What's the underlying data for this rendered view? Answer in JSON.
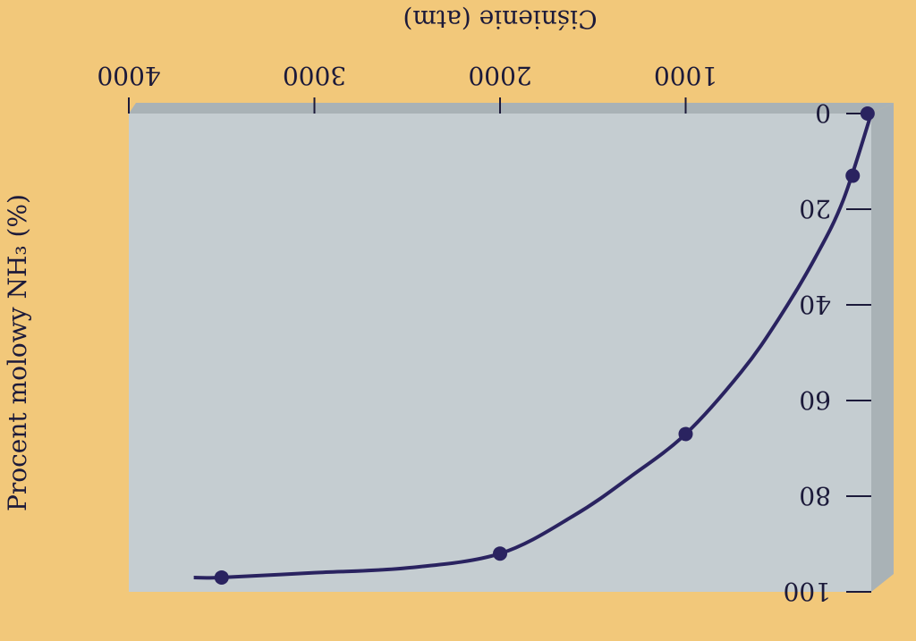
{
  "chart_data": {
    "type": "line",
    "title": "",
    "xlabel": "Ciśnienie (atm)",
    "ylabel": "Procent molowy NH₃ (%)",
    "xlim": [
      0,
      4000
    ],
    "ylim": [
      0,
      100
    ],
    "x_ticks": [
      1000,
      2000,
      3000,
      4000
    ],
    "y_ticks": [
      0,
      20,
      40,
      60,
      80,
      100
    ],
    "grid": false,
    "legend": "none",
    "orientation": "rotated 180 degrees",
    "points": [
      {
        "x": 20,
        "y": 0
      },
      {
        "x": 100,
        "y": 13
      },
      {
        "x": 1000,
        "y": 67
      },
      {
        "x": 2000,
        "y": 92
      },
      {
        "x": 3500,
        "y": 97
      }
    ],
    "curve": [
      {
        "x": 0,
        "y": 0
      },
      {
        "x": 150,
        "y": 18
      },
      {
        "x": 300,
        "y": 30
      },
      {
        "x": 500,
        "y": 43
      },
      {
        "x": 700,
        "y": 54
      },
      {
        "x": 1000,
        "y": 67
      },
      {
        "x": 1300,
        "y": 76
      },
      {
        "x": 1600,
        "y": 84
      },
      {
        "x": 2000,
        "y": 92
      },
      {
        "x": 2500,
        "y": 95
      },
      {
        "x": 3000,
        "y": 96
      },
      {
        "x": 3500,
        "y": 97
      },
      {
        "x": 3650,
        "y": 97
      }
    ],
    "colors": {
      "background": "#f2c87a",
      "plot_face": "#c5cdd1",
      "plot_side": "#a9b2b6",
      "line": "#2a2360",
      "marker": "#2a2360",
      "text": "#1c1a3a"
    }
  }
}
